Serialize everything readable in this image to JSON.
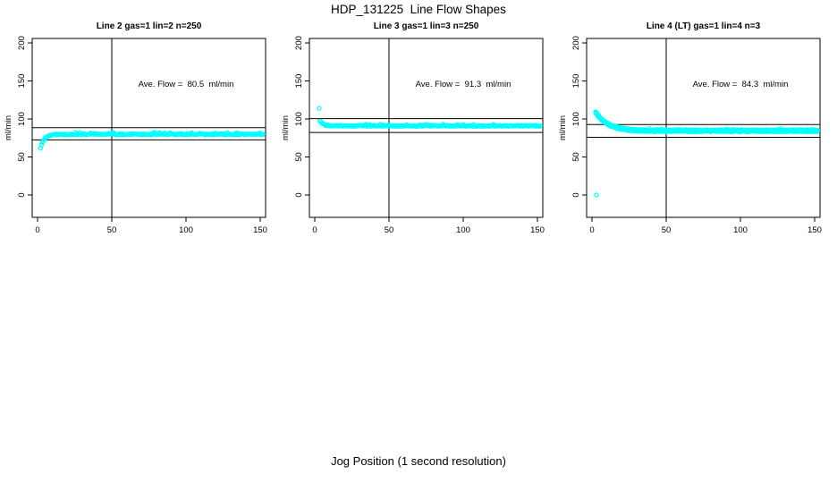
{
  "figure": {
    "title": "HDP_131225  Line Flow Shapes",
    "xlabel": "Jog Position (1 second resolution)",
    "background": "#FFFFFF",
    "axis_color": "#000000",
    "marker_color": "#00FFFF"
  },
  "chart_data": [
    {
      "type": "scatter",
      "title": "Line 2 gas=1 lin=2 n=250",
      "annotation": "Ave. Flow =  80.5  ml/min",
      "ave_flow_ml_min": 80.5,
      "n": 250,
      "ylabel": "ml/min",
      "x_ticks": [
        0,
        50,
        100,
        150
      ],
      "y_ticks": [
        0,
        50,
        100,
        150,
        200
      ],
      "xlim": [
        -3.5,
        153.5
      ],
      "ylim": [
        -29,
        206
      ],
      "grid": false,
      "legend": "none",
      "vline_x": 50,
      "hlines": [
        88.6,
        72.5
      ],
      "annotation_xy": [
        100,
        146
      ],
      "series": {
        "runs": 1,
        "points_per_run": 250,
        "x_start": 2,
        "x_end": 152,
        "y_start": 62,
        "y_flat": 79.8,
        "tau": 2.5,
        "jitter": 1.5,
        "bump": 1.7,
        "bump_p": 0.1,
        "run_offset": 0,
        "seed": 11
      },
      "outlier_points": []
    },
    {
      "type": "scatter",
      "title": "Line 3 gas=1 lin=3 n=250",
      "annotation": "Ave. Flow =  91.3  ml/min",
      "ave_flow_ml_min": 91.3,
      "n": 250,
      "ylabel": "ml/min",
      "x_ticks": [
        0,
        50,
        100,
        150
      ],
      "y_ticks": [
        0,
        50,
        100,
        150,
        200
      ],
      "xlim": [
        -3.5,
        153.5
      ],
      "ylim": [
        -29,
        206
      ],
      "grid": false,
      "legend": "none",
      "vline_x": 50,
      "hlines": [
        100.4,
        82.2
      ],
      "annotation_xy": [
        100,
        146
      ],
      "series": {
        "runs": 1,
        "points_per_run": 250,
        "x_start": 3.5,
        "x_end": 152,
        "y_start": 97.5,
        "y_flat": 91.0,
        "tau": 2.2,
        "jitter": 1.4,
        "bump": 1.5,
        "bump_p": 0.06,
        "run_offset": 0,
        "seed": 22
      },
      "outlier_points": [
        [
          3,
          114
        ]
      ]
    },
    {
      "type": "scatter",
      "title": "Line 4 (LT) gas=1 lin=4 n=3",
      "annotation": "Ave. Flow =  84.3  ml/min",
      "ave_flow_ml_min": 84.3,
      "n": 3,
      "ylabel": "ml/min",
      "x_ticks": [
        0,
        50,
        100,
        150
      ],
      "y_ticks": [
        0,
        50,
        100,
        150,
        200
      ],
      "xlim": [
        -3.5,
        153.5
      ],
      "ylim": [
        -29,
        206
      ],
      "grid": false,
      "legend": "none",
      "vline_x": 50,
      "hlines": [
        92.7,
        75.9
      ],
      "annotation_xy": [
        100,
        146
      ],
      "series": {
        "runs": 3,
        "points_per_run": 150,
        "x_start": 2.5,
        "x_end": 152,
        "y_start": 109,
        "y_flat": 84.5,
        "tau": 8,
        "jitter": 1.2,
        "bump": 1.4,
        "bump_p": 0.05,
        "run_offset": 0.9,
        "seed": 33
      },
      "outlier_points": [
        [
          3,
          0
        ]
      ]
    }
  ]
}
